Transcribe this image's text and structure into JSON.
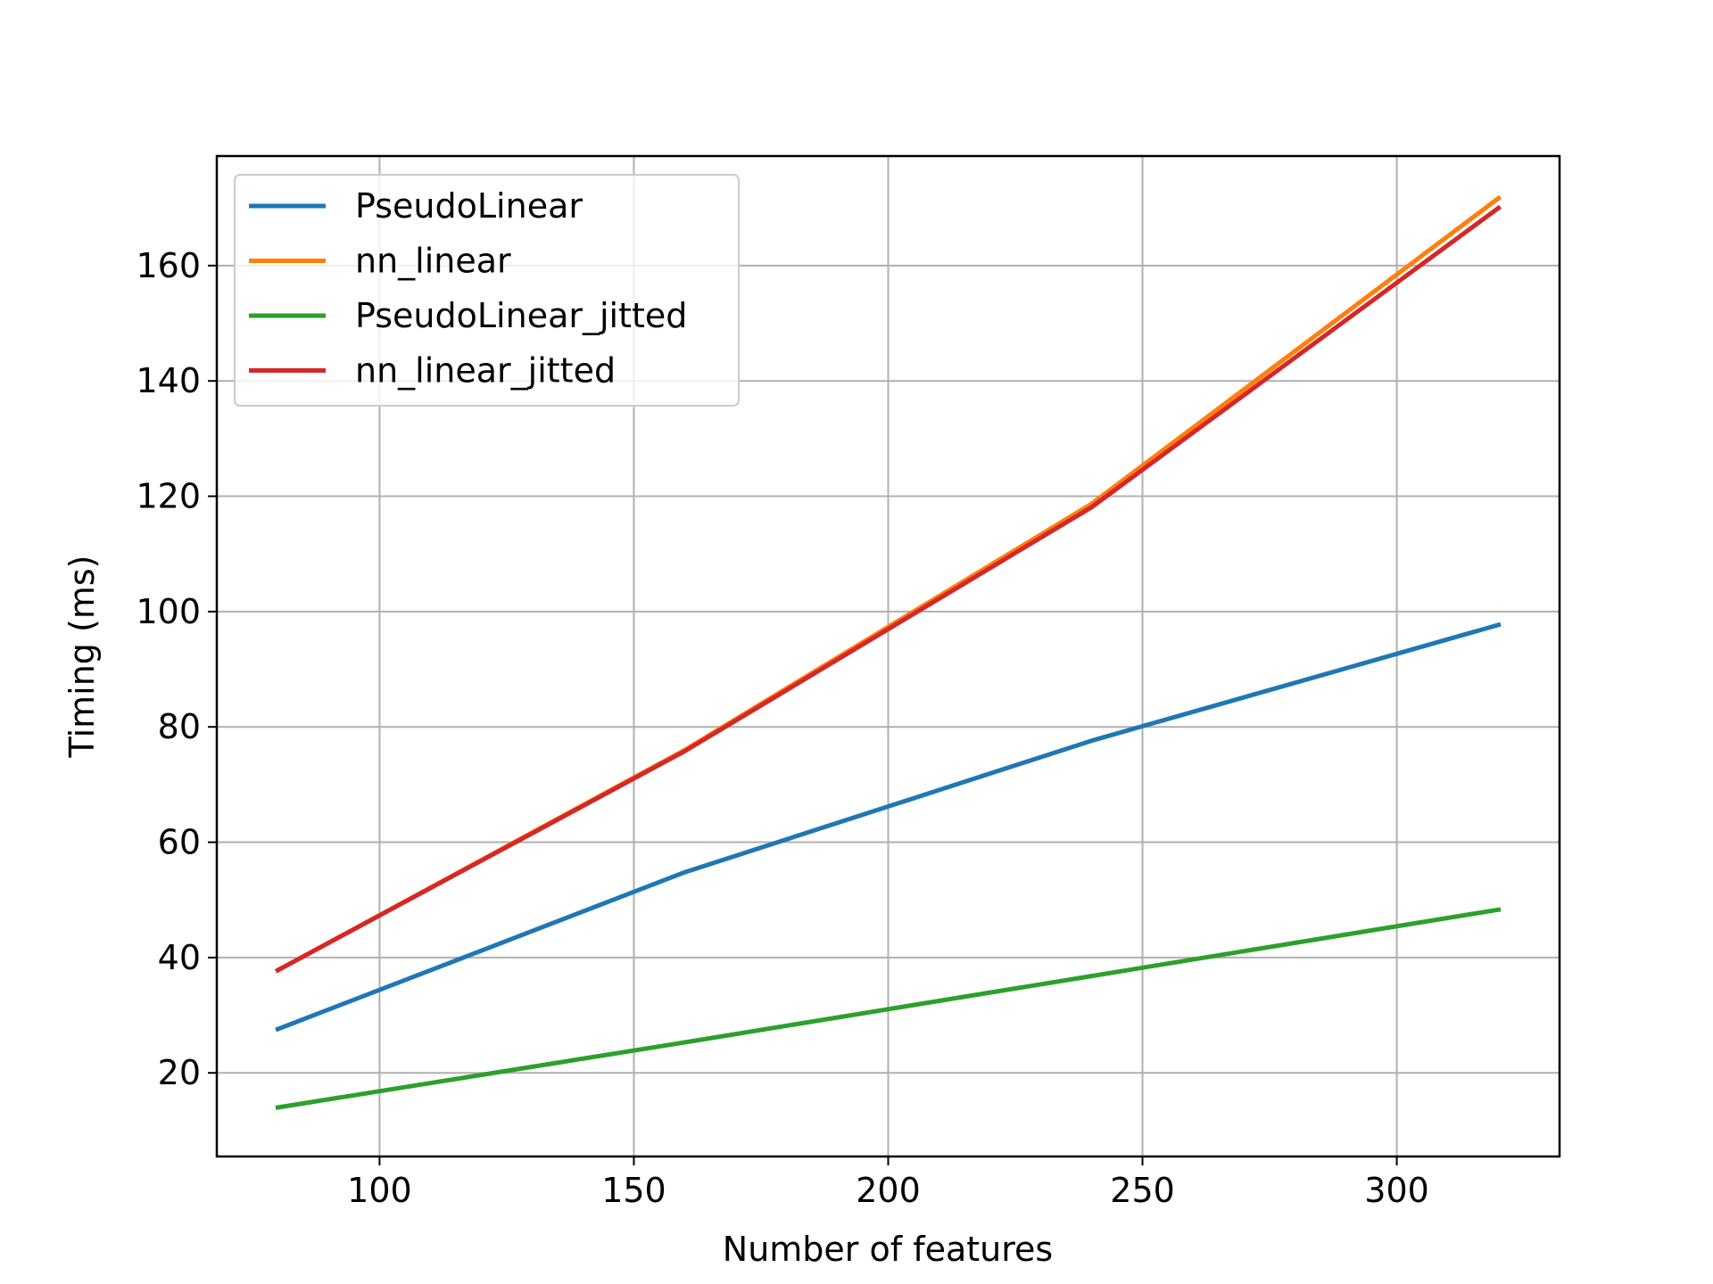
{
  "chart_data": {
    "type": "line",
    "title": "",
    "xlabel": "Number of features",
    "ylabel": "Timing (ms)",
    "xlim": [
      68,
      332
    ],
    "ylim": [
      5.5,
      179
    ],
    "xticks": [
      100,
      150,
      200,
      250,
      300
    ],
    "yticks": [
      20,
      40,
      60,
      80,
      100,
      120,
      140,
      160
    ],
    "grid": true,
    "legend_position": "top-left",
    "x": [
      80,
      160,
      240,
      320
    ],
    "series": [
      {
        "name": "PseudoLinear",
        "color": "#1f77b4",
        "values": [
          27.6,
          54.8,
          77.6,
          97.7
        ]
      },
      {
        "name": "nn_linear",
        "color": "#ff7f0e",
        "values": [
          37.8,
          76.0,
          118.7,
          171.7
        ]
      },
      {
        "name": "PseudoLinear_jitted",
        "color": "#2ca02c",
        "values": [
          14.0,
          25.3,
          36.8,
          48.3
        ]
      },
      {
        "name": "nn_linear_jitted",
        "color": "#d62728",
        "values": [
          37.8,
          75.8,
          118.1,
          170.0
        ]
      }
    ]
  }
}
